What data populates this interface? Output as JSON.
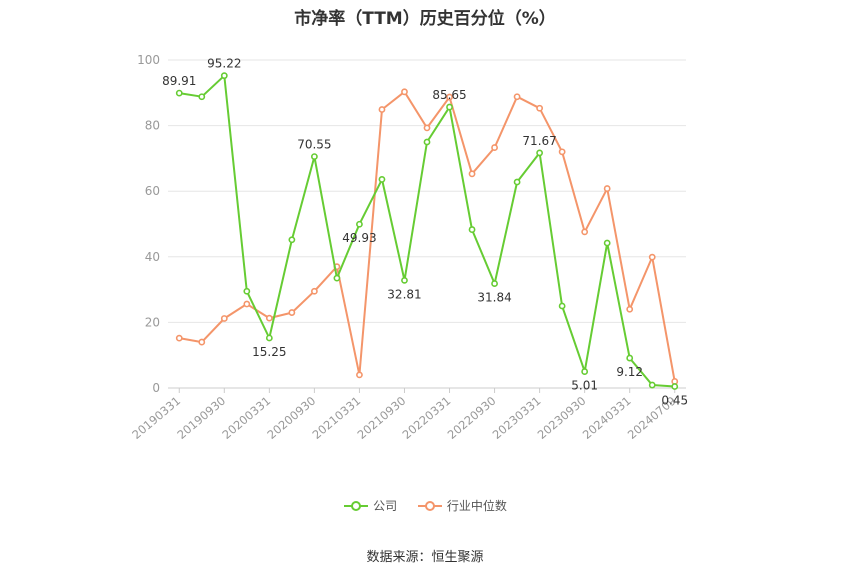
{
  "chart_data": {
    "type": "line",
    "title": "市净率（TTM）历史百分位（%）",
    "xlabel": "",
    "ylabel": "",
    "ylim": [
      0,
      100
    ],
    "yticks": [
      0,
      20,
      40,
      60,
      80,
      100
    ],
    "x": [
      "20190331",
      "20190630",
      "20190930",
      "20191231",
      "20200331",
      "20200630",
      "20200930",
      "20201231",
      "20210331",
      "20210630",
      "20210930",
      "20211231",
      "20220331",
      "20220630",
      "20220930",
      "20221231",
      "20230331",
      "20230630",
      "20230930",
      "20231231",
      "20240331",
      "20240630",
      "20240709"
    ],
    "x_tick_labels": [
      "20190331",
      "20190930",
      "20200331",
      "20200930",
      "20210331",
      "20210930",
      "20220331",
      "20220930",
      "20230331",
      "20230930",
      "20240331",
      "20240709"
    ],
    "grid": true,
    "legend_position": "bottom",
    "series": [
      {
        "name": "公司",
        "color": "#66cc33",
        "values": [
          89.91,
          88.8,
          95.22,
          29.5,
          15.25,
          45.2,
          70.55,
          33.5,
          49.93,
          63.6,
          32.81,
          75.0,
          85.65,
          48.3,
          31.84,
          62.8,
          71.67,
          25.0,
          5.01,
          44.2,
          9.12,
          0.9,
          0.45
        ],
        "data_labels": {
          "0": "89.91",
          "2": "95.22",
          "4": "15.25",
          "6": "70.55",
          "8": "49.93",
          "10": "32.81",
          "12": "85.65",
          "14": "31.84",
          "16": "71.67",
          "18": "5.01",
          "20": "9.12",
          "22": "0.45"
        }
      },
      {
        "name": "行业中位数",
        "color": "#f4956a",
        "values": [
          15.2,
          14.0,
          21.2,
          25.6,
          21.3,
          23.0,
          29.5,
          37.0,
          4.0,
          84.9,
          90.3,
          79.3,
          88.7,
          65.3,
          73.3,
          88.8,
          85.3,
          72.0,
          47.6,
          60.8,
          24.0,
          39.9,
          2.0
        ]
      }
    ]
  },
  "source_note": "数据来源：恒生聚源"
}
